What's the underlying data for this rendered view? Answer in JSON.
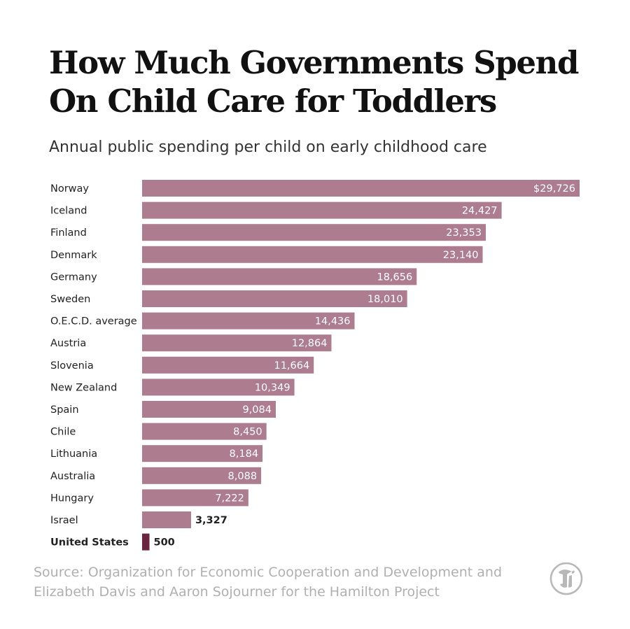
{
  "header": {
    "title_line1": "How Much Governments Spend",
    "title_line2": "On Child Care for Toddlers",
    "subtitle": "Annual public spending per child on early childhood care"
  },
  "footer": {
    "source_line1": "Source: Organization for Economic Cooperation and Development and",
    "source_line2": "Elizabeth Davis and Aaron Sojourner for the Hamilton Project",
    "logo_icon": "nyt-logo-icon"
  },
  "colors": {
    "bar": "#ad7d8f",
    "highlight_bar": "#6b2440",
    "bar_label": "#ffffff",
    "category_label": "#222222"
  },
  "chart_data": {
    "type": "bar",
    "orientation": "horizontal",
    "title": "How Much Governments Spend On Child Care for Toddlers",
    "subtitle": "Annual public spending per child on early childhood care",
    "categories": [
      "Norway",
      "Iceland",
      "Finland",
      "Denmark",
      "Germany",
      "Sweden",
      "O.E.C.D. average",
      "Austria",
      "Slovenia",
      "New Zealand",
      "Spain",
      "Chile",
      "Lithuania",
      "Australia",
      "Hungary",
      "Israel",
      "United States"
    ],
    "values": [
      29726,
      24427,
      23353,
      23140,
      18656,
      18010,
      14436,
      12864,
      11664,
      10349,
      9084,
      8450,
      8184,
      8088,
      7222,
      3327,
      500
    ],
    "value_labels": [
      "$29,726",
      "24,427",
      "23,353",
      "23,140",
      "18,656",
      "18,010",
      "14,436",
      "12,864",
      "11,664",
      "10,349",
      "9,084",
      "8,450",
      "8,184",
      "8,088",
      "7,222",
      "3,327",
      "500"
    ],
    "highlight": [
      "United States"
    ],
    "xlim": [
      0,
      29726
    ],
    "grid": false,
    "legend": "none"
  }
}
